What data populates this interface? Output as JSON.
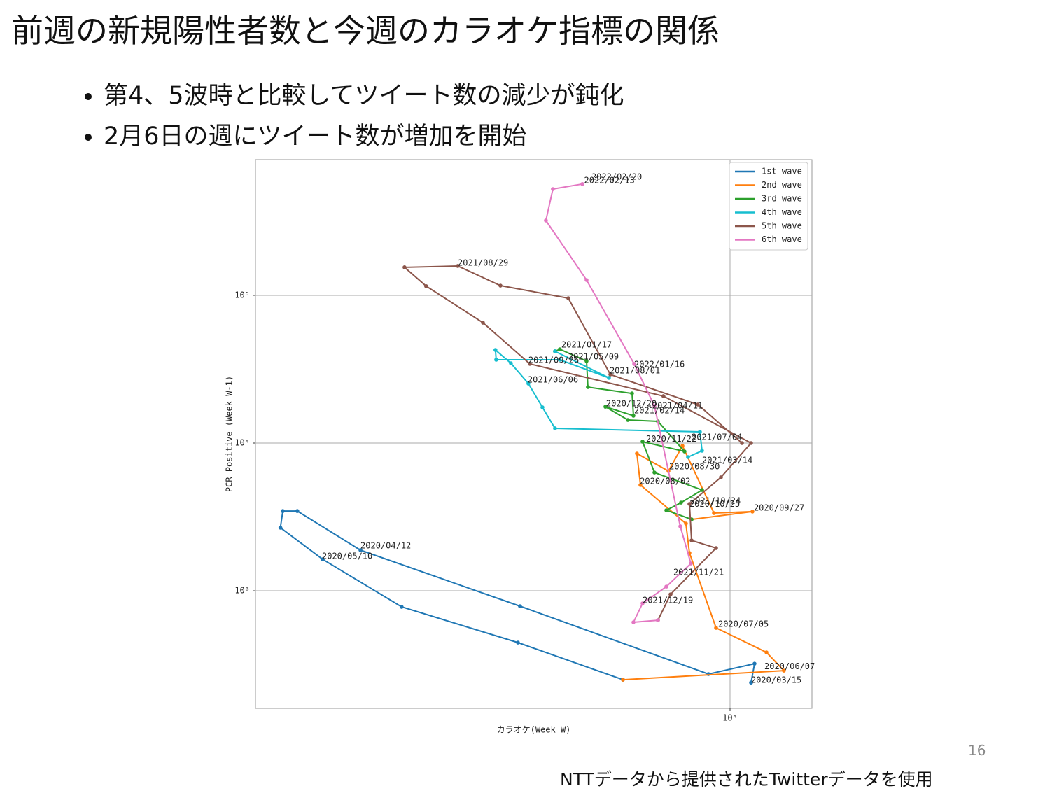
{
  "slide": {
    "title": "前週の新規陽性者数と今週のカラオケ指標の関係",
    "bullets": [
      "第4、5波時と比較してツイート数の減少が鈍化",
      "2月6日の週にツイート数が増加を開始"
    ],
    "footnote": "NTTデータから提供されたTwitterデータを使用",
    "page_number": "16"
  },
  "chart_data": {
    "type": "line",
    "x_label": "カラオケ(Week W)",
    "y_label": "PCR Positive (Week W-1)",
    "xscale": "log",
    "yscale": "log",
    "xlim": [
      202,
      19610
    ],
    "ylim": [
      160,
      830000
    ],
    "xticks": [
      {
        "value": 10000,
        "label": "10⁴"
      }
    ],
    "yticks": [
      {
        "value": 1000,
        "label": "10³"
      },
      {
        "value": 10000,
        "label": "10⁴"
      },
      {
        "value": 100000,
        "label": "10⁵"
      }
    ],
    "grid": true,
    "legend": "upper right",
    "series": [
      {
        "name": "1st wave",
        "color": "#1f77b4",
        "x": [
          11885,
          12230,
          8370,
          1778,
          479,
          285,
          253,
          248,
          351,
          672,
          1748,
          4145
        ],
        "values": [
          239,
          321,
          273,
          787,
          1884,
          3467,
          3467,
          2673,
          1633,
          778,
          446,
          250
        ]
      },
      {
        "name": "2nd wave",
        "color": "#ff7f0e",
        "x": [
          4145,
          15570,
          13490,
          8913,
          7161,
          6957,
          4786,
          4650,
          6026,
          6761,
          8760,
          12020,
          7288
        ],
        "values": [
          250,
          288,
          383,
          561,
          1803,
          2851,
          5200,
          8490,
          6460,
          9570,
          3357,
          3435,
          3041
        ]
      },
      {
        "name": "3rd wave",
        "color": "#2ca02c",
        "x": [
          7288,
          5923,
          6683,
          7943,
          5370,
          4870,
          6877,
          5527,
          4315,
          3589,
          4519,
          4467,
          3108,
          3073,
          2467,
          2371
        ],
        "values": [
          3041,
          3508,
          3953,
          4810,
          6320,
          10220,
          8770,
          14020,
          14330,
          17620,
          15310,
          21680,
          23920,
          35890,
          43150,
          41790
        ]
      },
      {
        "name": "4th wave",
        "color": "#17becf",
        "x": [
          2371,
          3694,
          2467,
          1462,
          1453,
          1650,
          1905,
          2138,
          2371,
          7805,
          7943,
          7079
        ],
        "values": [
          41790,
          27610,
          36640,
          36640,
          42660,
          34670,
          25290,
          17460,
          12580,
          11910,
          8870,
          8040
        ]
      },
      {
        "name": "5th wave",
        "color": "#8c564b",
        "x": [
          11030,
          7674,
          3737,
          2645,
          1514,
          1066,
          688,
          822,
          1311,
          1928,
          5781,
          11885,
          9279,
          7161,
          7288,
          8913,
          6131,
          5527
        ],
        "values": [
          10000,
          18230,
          29110,
          95700,
          116400,
          158100,
          154900,
          115400,
          65300,
          34340,
          20790,
          10000,
          5866,
          3873,
          2193,
          1946,
          946,
          632
        ]
      },
      {
        "name": "6th wave",
        "color": "#e377c2",
        "x": [
          5527,
          4519,
          4870,
          5923,
          7244,
          6643,
          5370,
          4546,
          3073,
          2200,
          2330,
          2969
        ],
        "values": [
          632,
          612,
          822,
          1067,
          1530,
          2731,
          17820,
          34340,
          127000,
          321400,
          524800,
          567600
        ]
      }
    ],
    "annotations": [
      {
        "text": "2022/02/20",
        "x": 3199,
        "y": 632000
      },
      {
        "text": "2022/02/13",
        "x": 3013,
        "y": 598000
      },
      {
        "text": "2021/08/29",
        "x": 1066,
        "y": 165000
      },
      {
        "text": "2021/01/17",
        "x": 2497,
        "y": 46100
      },
      {
        "text": "2021/05/09",
        "x": 2645,
        "y": 38300
      },
      {
        "text": "2021/09/26",
        "x": 1905,
        "y": 36200
      },
      {
        "text": "2022/01/16",
        "x": 4546,
        "y": 34000
      },
      {
        "text": "2021/08/01",
        "x": 3715,
        "y": 30800
      },
      {
        "text": "2021/06/06",
        "x": 1894,
        "y": 26700
      },
      {
        "text": "2020/12/20",
        "x": 3609,
        "y": 18400
      },
      {
        "text": "2021/04/11",
        "x": 5277,
        "y": 17800
      },
      {
        "text": "2021/02/14",
        "x": 4546,
        "y": 16500
      },
      {
        "text": "2021/07/04",
        "x": 7288,
        "y": 10900
      },
      {
        "text": "2020/11/22",
        "x": 5012,
        "y": 10600
      },
      {
        "text": "2021/03/14",
        "x": 7943,
        "y": 7630
      },
      {
        "text": "2020/08/30",
        "x": 6064,
        "y": 6900
      },
      {
        "text": "2020/08/02",
        "x": 4764,
        "y": 5490
      },
      {
        "text": "2021/10/24",
        "x": 7204,
        "y": 4050
      },
      {
        "text": "2020/10/25",
        "x": 7161,
        "y": 3850
      },
      {
        "text": "2020/09/27",
        "x": 12160,
        "y": 3620
      },
      {
        "text": "2020/04/12",
        "x": 479,
        "y": 2010
      },
      {
        "text": "2020/05/10",
        "x": 349,
        "y": 1706
      },
      {
        "text": "2021/11/21",
        "x": 6273,
        "y": 1327
      },
      {
        "text": "2021/12/19",
        "x": 4870,
        "y": 859
      },
      {
        "text": "2020/07/05",
        "x": 9067,
        "y": 592
      },
      {
        "text": "2020/06/07",
        "x": 13260,
        "y": 307
      },
      {
        "text": "2020/03/15",
        "x": 11885,
        "y": 247
      }
    ]
  }
}
